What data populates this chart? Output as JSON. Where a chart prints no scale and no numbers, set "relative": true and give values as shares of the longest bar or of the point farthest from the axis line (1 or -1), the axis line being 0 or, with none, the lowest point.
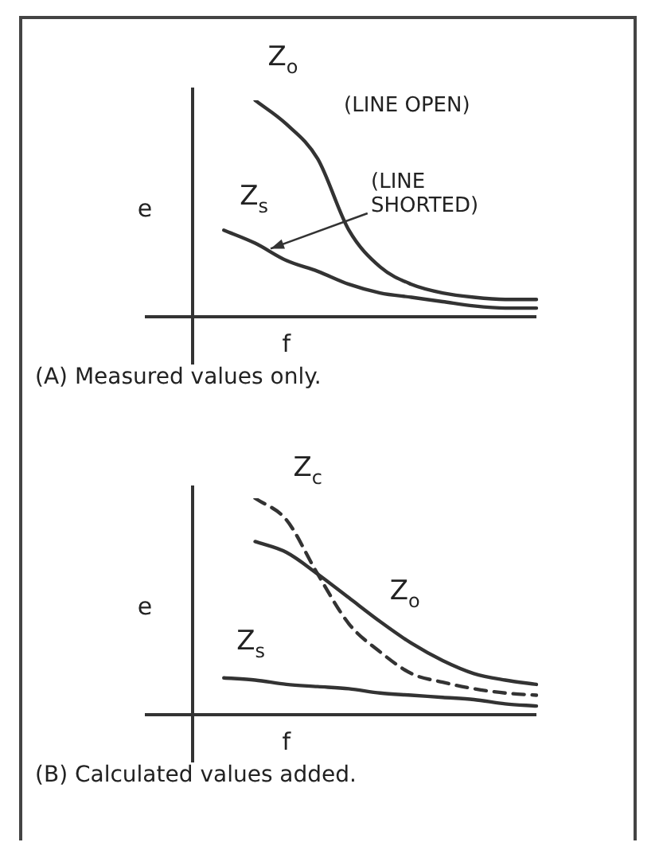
{
  "chart_data": [
    {
      "type": "line",
      "title": "(A) Measured values only.",
      "xlabel": "f",
      "ylabel": "e",
      "relative": true,
      "legend": false,
      "marker": "none",
      "categories": [
        null,
        null,
        null,
        null,
        null,
        null,
        null,
        null,
        null,
        null,
        null,
        null
      ],
      "series": [
        {
          "name": "Z$_{o}$",
          "color": "#333333",
          "values": [
            null,
            null,
            1.0,
            0.89,
            0.73,
            0.4,
            0.23,
            0.15,
            0.11,
            0.09,
            0.08,
            0.08
          ]
        },
        {
          "name": "Z$_{s}$",
          "color": "#333333",
          "values": [
            null,
            0.4,
            0.34,
            0.26,
            0.21,
            0.15,
            0.11,
            0.09,
            0.07,
            0.05,
            0.04,
            0.04
          ]
        }
      ],
      "annotations": [
        "(LINE OPEN)",
        "(LINE SHORTED)"
      ]
    },
    {
      "type": "line",
      "title": "(B) Calculated values added.",
      "xlabel": "f",
      "ylabel": "e",
      "relative": true,
      "legend": false,
      "marker": "none",
      "categories": [
        null,
        null,
        null,
        null,
        null,
        null,
        null,
        null,
        null,
        null,
        null,
        null
      ],
      "series": [
        {
          "name": "Z$_{c}$",
          "color": "#333333",
          "line_style": "dashed",
          "values": [
            null,
            null,
            1.0,
            0.9,
            0.65,
            0.42,
            0.29,
            0.19,
            0.15,
            0.12,
            0.1,
            0.09
          ]
        },
        {
          "name": "Z$_{o}$",
          "color": "#333333",
          "values": [
            null,
            null,
            0.8,
            0.75,
            0.65,
            0.54,
            0.43,
            0.33,
            0.25,
            0.19,
            0.16,
            0.14
          ]
        },
        {
          "name": "Z$_{s}$",
          "color": "#333333",
          "values": [
            null,
            0.17,
            0.16,
            0.14,
            0.13,
            0.12,
            0.1,
            0.09,
            0.08,
            0.07,
            0.05,
            0.04
          ]
        }
      ]
    }
  ]
}
